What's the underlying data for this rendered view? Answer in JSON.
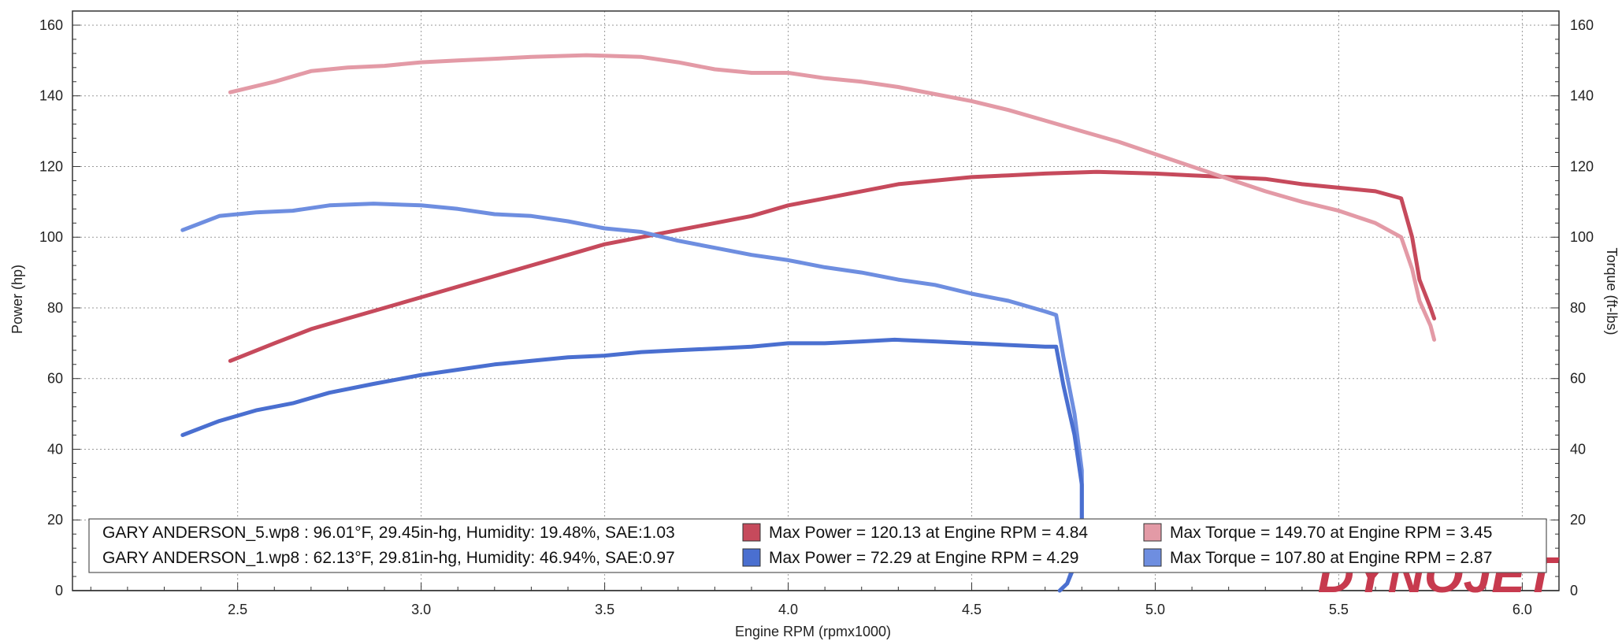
{
  "chart_data": {
    "type": "line",
    "title": "",
    "xlabel": "Engine RPM (rpmx1000)",
    "ylabel_left": "Power (hp)",
    "ylabel_right": "Torque (ft-lbs)",
    "xlim": [
      2.05,
      6.1
    ],
    "ylim": [
      0,
      164
    ],
    "x_ticks": [
      2.5,
      3.0,
      3.5,
      4.0,
      4.5,
      5.0,
      5.5,
      6.0
    ],
    "x_tick_labels": [
      "2.5",
      "3.0",
      "3.5",
      "4.0",
      "4.5",
      "5.0",
      "5.5",
      "6.0"
    ],
    "y_ticks": [
      0,
      20,
      40,
      60,
      80,
      100,
      120,
      140,
      160
    ],
    "y_tick_labels": [
      "0",
      "20",
      "40",
      "60",
      "80",
      "100",
      "120",
      "140",
      "160"
    ],
    "grid": true,
    "legend_position": "bottom",
    "colors": {
      "power_run5": "#c64a5c",
      "torque_run5": "#e39aa6",
      "power_run1": "#4a6fd0",
      "torque_run1": "#6e8ee0"
    },
    "series": [
      {
        "key": "power_run5",
        "axis": "left",
        "x": [
          2.48,
          2.6,
          2.7,
          2.8,
          2.9,
          3.0,
          3.1,
          3.2,
          3.3,
          3.4,
          3.5,
          3.6,
          3.7,
          3.8,
          3.9,
          4.0,
          4.1,
          4.2,
          4.3,
          4.4,
          4.5,
          4.6,
          4.7,
          4.84,
          5.0,
          5.1,
          5.2,
          5.3,
          5.4,
          5.5,
          5.6,
          5.67,
          5.7,
          5.72,
          5.75,
          5.76
        ],
        "y": [
          65,
          70,
          74,
          77,
          80,
          83,
          86,
          89,
          92,
          95,
          98,
          100,
          102,
          104,
          106,
          109,
          111,
          113,
          115,
          116,
          117,
          117.5,
          118,
          118.5,
          118,
          117.5,
          117,
          116.5,
          115,
          114,
          113,
          111,
          100,
          88,
          80,
          77
        ]
      },
      {
        "key": "torque_run5",
        "axis": "right",
        "x": [
          2.48,
          2.6,
          2.7,
          2.8,
          2.9,
          3.0,
          3.1,
          3.2,
          3.3,
          3.45,
          3.6,
          3.7,
          3.8,
          3.9,
          4.0,
          4.1,
          4.2,
          4.3,
          4.4,
          4.5,
          4.6,
          4.7,
          4.8,
          4.9,
          5.0,
          5.1,
          5.2,
          5.3,
          5.4,
          5.5,
          5.6,
          5.67,
          5.7,
          5.72,
          5.75,
          5.76
        ],
        "y": [
          141,
          144,
          147,
          148,
          148.5,
          149.5,
          150,
          150.5,
          151,
          151.5,
          151,
          149.5,
          147.5,
          146.5,
          146.5,
          145,
          144,
          142.5,
          140.5,
          138.5,
          136,
          133,
          130,
          127,
          123.5,
          120,
          116.5,
          113,
          110,
          107.5,
          104,
          100,
          91,
          82,
          75,
          71
        ]
      },
      {
        "key": "torque_run1",
        "axis": "right",
        "x": [
          2.35,
          2.45,
          2.55,
          2.65,
          2.75,
          2.87,
          3.0,
          3.1,
          3.2,
          3.3,
          3.4,
          3.5,
          3.6,
          3.7,
          3.8,
          3.9,
          4.0,
          4.1,
          4.2,
          4.3,
          4.4,
          4.5,
          4.6,
          4.7,
          4.73,
          4.75,
          4.78,
          4.8,
          4.8,
          4.78,
          4.76,
          4.74
        ],
        "y": [
          102,
          106,
          107,
          107.5,
          109,
          109.5,
          109,
          108,
          106.5,
          106,
          104.5,
          102.5,
          101.5,
          99,
          97,
          95,
          93.5,
          91.5,
          90,
          88,
          86.5,
          84,
          82,
          79,
          78,
          66,
          50,
          34,
          18,
          8,
          2,
          0
        ]
      },
      {
        "key": "power_run1",
        "axis": "left",
        "x": [
          2.35,
          2.45,
          2.55,
          2.65,
          2.75,
          2.87,
          3.0,
          3.1,
          3.2,
          3.3,
          3.4,
          3.5,
          3.6,
          3.7,
          3.8,
          3.9,
          4.0,
          4.1,
          4.2,
          4.29,
          4.4,
          4.5,
          4.6,
          4.7,
          4.73,
          4.75,
          4.78,
          4.8,
          4.8,
          4.78,
          4.76,
          4.74
        ],
        "y": [
          44,
          48,
          51,
          53,
          56,
          58.5,
          61,
          62.5,
          64,
          65,
          66,
          66.5,
          67.5,
          68,
          68.5,
          69,
          70,
          70,
          70.5,
          71,
          70.5,
          70,
          69.5,
          69,
          69,
          58,
          44,
          30,
          16,
          7,
          2,
          0
        ]
      }
    ],
    "legend": {
      "run5_label": "GARY ANDERSON_5.wp8 : 96.01°F, 29.45in-hg, Humidity: 19.48%, SAE:1.03",
      "run1_label": "GARY ANDERSON_1.wp8 : 62.13°F, 29.81in-hg, Humidity: 46.94%, SAE:0.97",
      "run5_max_power": "Max Power = 120.13 at Engine RPM = 4.84",
      "run1_max_power": "Max Power = 72.29 at Engine RPM = 4.29",
      "run5_max_torque": "Max Torque = 149.70 at Engine RPM = 3.45",
      "run1_max_torque": "Max Torque = 107.80 at Engine RPM = 2.87"
    },
    "watermark": "DYNOJET"
  }
}
